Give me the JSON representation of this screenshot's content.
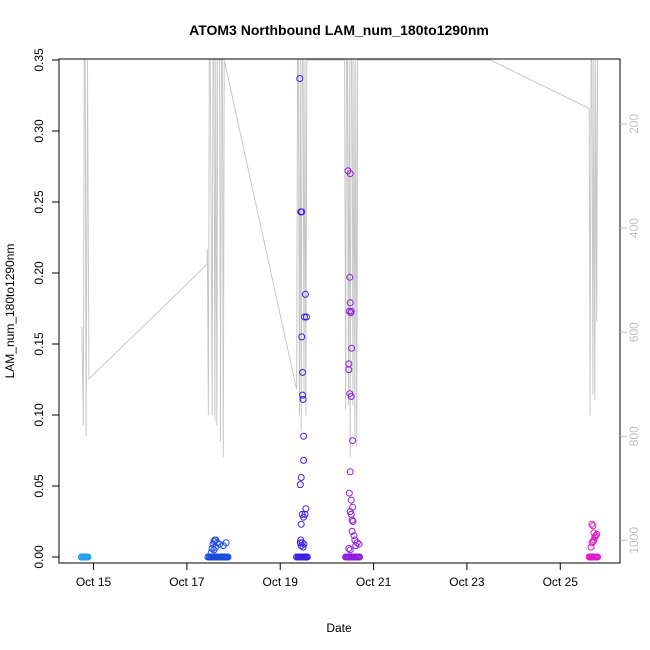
{
  "chart_data": {
    "type": "scatter",
    "title": "ATOM3 Northbound LAM_num_180to1290nm",
    "xlabel": "Date",
    "ylabel": "LAM_num_180to1290nm",
    "x_ticks": [
      "Oct 15",
      "Oct 17",
      "Oct 19",
      "Oct 21",
      "Oct 23",
      "Oct 25"
    ],
    "x_tick_days": [
      15,
      17,
      19,
      21,
      23,
      25
    ],
    "xlim_days": [
      14.26,
      26.28
    ],
    "ylim": [
      0,
      0.35
    ],
    "y_ticks": [
      0.0,
      0.05,
      0.1,
      0.15,
      0.2,
      0.25,
      0.3,
      0.35
    ],
    "y_tick_labels": [
      "0.00",
      "0.05",
      "0.10",
      "0.15",
      "0.20",
      "0.25",
      "0.30",
      "0.35"
    ],
    "secondary_axis": {
      "side": "right",
      "reversed": true,
      "color": "#bfbfbf",
      "lim": [
        77,
        1032
      ],
      "ticks": [
        200,
        400,
        600,
        800,
        1000
      ],
      "tick_labels": [
        "200",
        "400",
        "600",
        "800",
        "1000"
      ]
    },
    "grid": false,
    "legend": "none",
    "series": [
      {
        "color": "#1e9fe8",
        "x_day": [
          14.74,
          14.76,
          14.78,
          14.8,
          14.82,
          14.84,
          14.86,
          14.88
        ],
        "y": [
          0,
          0,
          0,
          0,
          0,
          0,
          0,
          0
        ]
      },
      {
        "color": "#1a4be0",
        "x_day": [
          17.45,
          17.48,
          17.5,
          17.52,
          17.54,
          17.56,
          17.58,
          17.6,
          17.62,
          17.64,
          17.66,
          17.68,
          17.7,
          17.72,
          17.74,
          17.76,
          17.78,
          17.8,
          17.82,
          17.84,
          17.86,
          17.88,
          17.52,
          17.54,
          17.56,
          17.58,
          17.6,
          17.62,
          17.65,
          17.7,
          17.78,
          17.84,
          17.58,
          17.62
        ],
        "y": [
          0,
          0,
          0,
          0,
          0,
          0,
          0,
          0,
          0,
          0,
          0,
          0,
          0,
          0,
          0,
          0,
          0,
          0,
          0,
          0,
          0,
          0,
          0.003,
          0.006,
          0.009,
          0.011,
          0.012,
          0.012,
          0.01,
          0.009,
          0.008,
          0.01,
          0.005,
          0.007
        ]
      },
      {
        "color": "#3a1ee0",
        "x_day": [
          19.35,
          19.38,
          19.4,
          19.42,
          19.44,
          19.46,
          19.48,
          19.5,
          19.52,
          19.54,
          19.56,
          19.58,
          19.42,
          19.44,
          19.44,
          19.46,
          19.46,
          19.48,
          19.48,
          19.49,
          19.5,
          19.5,
          19.52,
          19.54,
          19.56,
          19.55,
          19.43,
          19.45,
          19.47,
          19.45,
          19.5,
          19.53,
          19.43,
          19.45,
          19.47,
          19.49,
          19.51
        ],
        "y": [
          0,
          0,
          0,
          0,
          0,
          0,
          0,
          0,
          0,
          0,
          0,
          0,
          0.337,
          0.243,
          0.012,
          0.155,
          0.243,
          0.13,
          0.114,
          0.111,
          0.085,
          0.068,
          0.169,
          0.185,
          0.169,
          0.034,
          0.051,
          0.056,
          0.03,
          0.023,
          0.028,
          0.03,
          0.01,
          0.008,
          0.01,
          0.007,
          0.009
        ]
      },
      {
        "color": "#8f1ee0",
        "x_day": [
          20.4,
          20.42,
          20.44,
          20.46,
          20.48,
          20.5,
          20.52,
          20.54,
          20.56,
          20.58,
          20.6,
          20.62,
          20.64,
          20.66,
          20.68,
          20.7,
          20.45,
          20.5,
          20.49,
          20.51,
          20.52,
          20.48,
          20.47,
          20.5,
          20.47,
          20.49,
          20.53,
          20.52,
          20.55,
          20.5,
          20.48,
          20.52,
          20.55,
          20.5,
          20.52,
          20.54,
          20.6,
          20.65,
          20.69,
          20.56,
          20.62,
          20.58,
          20.54,
          20.47,
          20.5
        ],
        "y": [
          0,
          0,
          0,
          0,
          0,
          0,
          0,
          0,
          0,
          0,
          0,
          0,
          0,
          0,
          0,
          0,
          0.272,
          0.27,
          0.197,
          0.172,
          0.173,
          0.173,
          0.136,
          0.179,
          0.132,
          0.115,
          0.147,
          0.113,
          0.082,
          0.06,
          0.045,
          0.04,
          0.035,
          0.032,
          0.03,
          0.026,
          0.012,
          0.01,
          0.009,
          0.025,
          0.008,
          0.015,
          0.018,
          0.006,
          0.005
        ]
      },
      {
        "color": "#e018c8",
        "x_day": [
          25.62,
          25.64,
          25.66,
          25.68,
          25.7,
          25.72,
          25.74,
          25.76,
          25.78,
          25.8,
          25.68,
          25.7,
          25.72,
          25.74,
          25.76,
          25.78,
          25.68,
          25.66,
          25.7,
          25.72
        ],
        "y": [
          0,
          0,
          0,
          0,
          0,
          0,
          0,
          0,
          0,
          0,
          0.023,
          0.022,
          0.017,
          0.014,
          0.015,
          0.016,
          0.01,
          0.007,
          0.011,
          0.012
        ]
      }
    ],
    "secondary_line": {
      "color": "#c8c8c8",
      "x_day": [
        14.75,
        14.78,
        14.8,
        14.82,
        14.84,
        14.87,
        14.9,
        17.43,
        17.44,
        17.46,
        17.48,
        17.5,
        17.52,
        17.54,
        17.56,
        17.58,
        17.6,
        17.62,
        17.64,
        17.66,
        17.68,
        17.7,
        17.72,
        17.74,
        17.76,
        17.78,
        17.8,
        19.35,
        19.37,
        19.39,
        19.41,
        19.43,
        19.45,
        19.47,
        19.49,
        19.51,
        19.53,
        19.55,
        19.57,
        19.59,
        19.8,
        20.38,
        20.4,
        20.42,
        20.44,
        20.46,
        20.48,
        20.5,
        20.52,
        20.54,
        20.56,
        20.58,
        20.6,
        20.62,
        20.64,
        20.66,
        20.68,
        20.7,
        22.3,
        23.5,
        25.62,
        25.64,
        25.66,
        25.68,
        25.7,
        25.72,
        25.74,
        25.76,
        25.78,
        25.8
      ],
      "y": [
        1032,
        1032,
        1032,
        1032,
        1032,
        1032,
        1032,
        1032,
        1032,
        1032,
        1032,
        1032,
        1032,
        1032,
        1032,
        1032,
        1032,
        1032,
        1032,
        1032,
        1032,
        1032,
        1032,
        1032,
        1032,
        1032,
        1032,
        1032,
        1032,
        1032,
        1032,
        1032,
        1032,
        1032,
        1032,
        1032,
        1032,
        1032,
        1032,
        1032,
        1032,
        1032,
        1032,
        1032,
        1032,
        1032,
        1032,
        1032,
        1032,
        1032,
        1032,
        1032,
        1032,
        1032,
        1032,
        1032,
        1032,
        1032,
        1032,
        1032,
        1032,
        1032,
        1032,
        1032,
        1032,
        1032,
        1032,
        1032,
        1032,
        1032
      ],
      "y_values": [
        590,
        780,
        77,
        77,
        800,
        77,
        690,
        470,
        440,
        760,
        77,
        77,
        380,
        760,
        77,
        77,
        770,
        77,
        780,
        77,
        77,
        77,
        810,
        77,
        77,
        840,
        77,
        710,
        77,
        77,
        760,
        77,
        790,
        77,
        77,
        730,
        77,
        760,
        77,
        77,
        77,
        77,
        750,
        77,
        77,
        740,
        77,
        840,
        77,
        77,
        740,
        77,
        800,
        77,
        820,
        77,
        77,
        77,
        77,
        77,
        170,
        760,
        77,
        77,
        720,
        77,
        730,
        77,
        580,
        77
      ]
    }
  }
}
